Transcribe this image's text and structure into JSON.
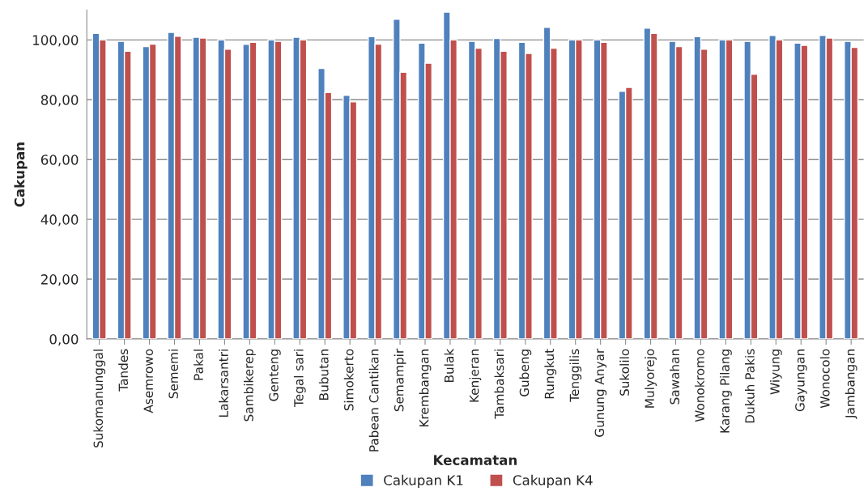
{
  "chart_data": {
    "type": "bar",
    "xlabel": "Kecamatan",
    "ylabel": "Cakupan",
    "categories": [
      "Sukomanunggal",
      "Tandes",
      "Asemrowo",
      "Sememi",
      "Pakal",
      "Lakarsantri",
      "Sambikerep",
      "Genteng",
      "Tegal sari",
      "Bubutan",
      "Simokerto",
      "Pabean Cantikan",
      "Semampir",
      "Krembangan",
      "Bulak",
      "Kenjeran",
      "Tambaksari",
      "Gubeng",
      "Rungkut",
      "Tenggilis",
      "Gunung Anyar",
      "Sukolilo",
      "Mulyorejo",
      "Sawahan",
      "Wonokromo",
      "Karang Pilang",
      "Dukuh Pakis",
      "Wiyung",
      "Gayungan",
      "Wonocolo",
      "Jambangan"
    ],
    "series": [
      {
        "name": "Cakupan K1",
        "color": "#4f81bd",
        "values": [
          102.2,
          99.5,
          97.8,
          102.5,
          100.9,
          100.0,
          98.5,
          100.0,
          100.9,
          90.5,
          81.5,
          101.1,
          106.9,
          98.9,
          109.3,
          99.5,
          100.5,
          99.2,
          104.2,
          100.0,
          100.0,
          82.8,
          103.9,
          99.5,
          101.1,
          100.0,
          99.5,
          101.5,
          98.9,
          101.5,
          99.5
        ]
      },
      {
        "name": "Cakupan K4",
        "color": "#c0504d",
        "values": [
          100.0,
          96.2,
          98.6,
          101.2,
          100.6,
          96.9,
          99.2,
          99.5,
          100.0,
          82.4,
          79.3,
          98.6,
          89.2,
          92.2,
          100.0,
          97.2,
          96.2,
          95.5,
          97.2,
          100.0,
          99.2,
          84.1,
          102.2,
          97.8,
          96.9,
          100.0,
          88.5,
          100.0,
          98.2,
          100.6,
          97.5
        ]
      }
    ],
    "ylim": [
      0,
      110
    ],
    "yticks": [
      {
        "value": 0,
        "label": "0,00"
      },
      {
        "value": 20,
        "label": "20,00"
      },
      {
        "value": 40,
        "label": "40,00"
      },
      {
        "value": 60,
        "label": "60,00"
      },
      {
        "value": 80,
        "label": "80,00"
      },
      {
        "value": 100,
        "label": "100,00"
      }
    ],
    "grid": "y",
    "legend": "bottom"
  }
}
